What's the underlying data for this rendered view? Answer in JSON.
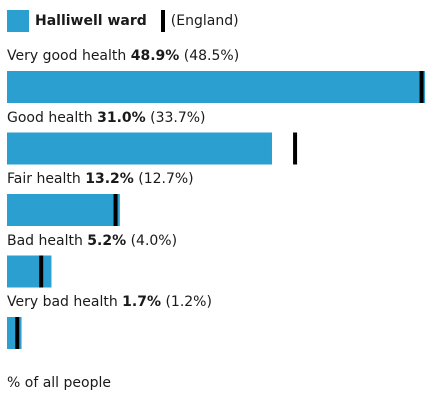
{
  "legend": {
    "series_label": "Halliwell ward",
    "reference_label": "(England)"
  },
  "colors": {
    "bar": "#2a9fd0",
    "reference_marker": "#000000"
  },
  "chart_data": {
    "type": "bar",
    "orientation": "horizontal",
    "categories": [
      "Very good health",
      "Good health",
      "Fair health",
      "Bad health",
      "Very bad health"
    ],
    "series": [
      {
        "name": "Halliwell ward",
        "values": [
          48.9,
          31.0,
          13.2,
          5.2,
          1.7
        ]
      },
      {
        "name": "(England)",
        "values": [
          48.5,
          33.7,
          12.7,
          4.0,
          1.2
        ]
      }
    ],
    "value_labels": [
      "48.9%",
      "31.0%",
      "13.2%",
      "5.2%",
      "1.7%"
    ],
    "reference_labels": [
      "(48.5%)",
      "(33.7%)",
      "(12.7%)",
      "(4.0%)",
      "(1.2%)"
    ],
    "unit_label": "% of all people",
    "xlim": [
      0,
      48.9
    ]
  }
}
